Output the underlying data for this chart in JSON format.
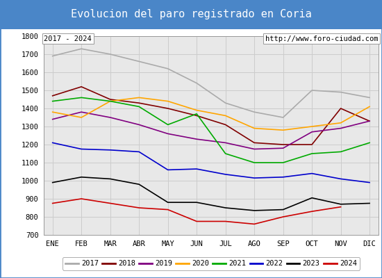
{
  "title": "Evolucion del paro registrado en Coria",
  "subtitle_left": "2017 - 2024",
  "subtitle_right": "http://www.foro-ciudad.com",
  "months": [
    "ENE",
    "FEB",
    "MAR",
    "ABR",
    "MAY",
    "JUN",
    "JUL",
    "AGO",
    "SEP",
    "OCT",
    "NOV",
    "DIC"
  ],
  "ylim": [
    700,
    1800
  ],
  "yticks": [
    700,
    800,
    900,
    1000,
    1100,
    1200,
    1300,
    1400,
    1500,
    1600,
    1700,
    1800
  ],
  "series": {
    "2017": {
      "color": "#aaaaaa",
      "linewidth": 1.2,
      "values": [
        1690,
        1730,
        1700,
        1660,
        1620,
        1540,
        1430,
        1380,
        1350,
        1500,
        1490,
        1460
      ]
    },
    "2018": {
      "color": "#800000",
      "linewidth": 1.2,
      "values": [
        1470,
        1520,
        1450,
        1430,
        1400,
        1360,
        1310,
        1210,
        1200,
        1200,
        1400,
        1330
      ]
    },
    "2019": {
      "color": "#800080",
      "linewidth": 1.2,
      "values": [
        1340,
        1380,
        1350,
        1310,
        1260,
        1230,
        1210,
        1175,
        1180,
        1270,
        1290,
        1330
      ]
    },
    "2020": {
      "color": "#FFA500",
      "linewidth": 1.2,
      "values": [
        1380,
        1350,
        1440,
        1460,
        1440,
        1390,
        1360,
        1290,
        1280,
        1300,
        1320,
        1410
      ]
    },
    "2021": {
      "color": "#00aa00",
      "linewidth": 1.2,
      "values": [
        1440,
        1460,
        1440,
        1410,
        1310,
        1370,
        1150,
        1100,
        1100,
        1150,
        1160,
        1210
      ]
    },
    "2022": {
      "color": "#0000cc",
      "linewidth": 1.2,
      "values": [
        1210,
        1175,
        1170,
        1160,
        1060,
        1065,
        1035,
        1015,
        1020,
        1040,
        1010,
        990
      ]
    },
    "2023": {
      "color": "#000000",
      "linewidth": 1.2,
      "values": [
        990,
        1020,
        1010,
        980,
        880,
        880,
        850,
        835,
        840,
        905,
        870,
        875
      ]
    },
    "2024": {
      "color": "#cc0000",
      "linewidth": 1.2,
      "values": [
        875,
        900,
        875,
        850,
        840,
        775,
        775,
        760,
        800,
        830,
        855,
        null
      ]
    }
  },
  "title_bg": "#4a86c8",
  "title_color": "white",
  "title_fontsize": 11,
  "plot_bg": "#e8e8e8",
  "grid_color": "#cccccc",
  "legend_years": [
    "2017",
    "2018",
    "2019",
    "2020",
    "2021",
    "2022",
    "2023",
    "2024"
  ],
  "legend_colors": [
    "#aaaaaa",
    "#800000",
    "#800080",
    "#FFA500",
    "#00aa00",
    "#0000cc",
    "#000000",
    "#cc0000"
  ]
}
